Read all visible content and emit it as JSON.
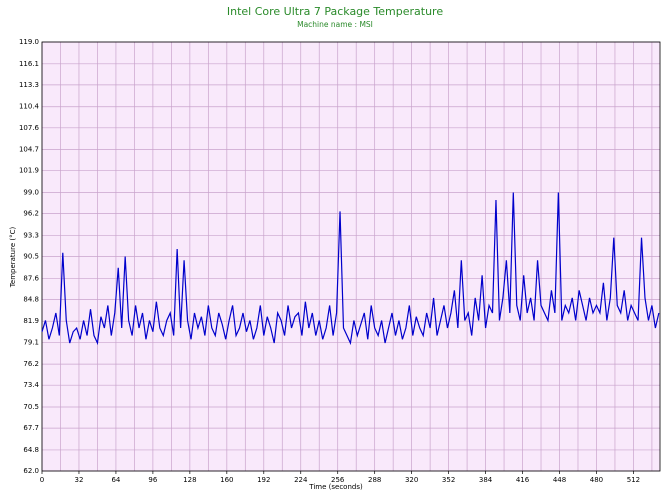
{
  "chart_data": {
    "type": "line",
    "title": "Intel Core Ultra 7 Package Temperature",
    "subtitle": "Machine name : MSI",
    "ylabel": "Temperature (°C)",
    "xlabel": "Time (seconds)",
    "xlim": [
      0,
      535
    ],
    "ylim": [
      62,
      119
    ],
    "xticks": [
      0,
      32,
      64,
      96,
      128,
      160,
      192,
      224,
      256,
      288,
      320,
      352,
      384,
      416,
      448,
      480,
      512
    ],
    "yticks": [
      {
        "value": 62,
        "label": "62.0"
      },
      {
        "value": 64.8,
        "label": "64.8"
      },
      {
        "value": 67.7,
        "label": "67.7"
      },
      {
        "value": 70.5,
        "label": "70.5"
      },
      {
        "value": 73.4,
        "label": "73.4"
      },
      {
        "value": 76.2,
        "label": "76.2"
      },
      {
        "value": 79.1,
        "label": "79.1"
      },
      {
        "value": 81.9,
        "label": "81.9"
      },
      {
        "value": 84.8,
        "label": "84.8"
      },
      {
        "value": 87.6,
        "label": "87.6"
      },
      {
        "value": 90.5,
        "label": "90.5"
      },
      {
        "value": 93.3,
        "label": "93.3"
      },
      {
        "value": 96.2,
        "label": "96.2"
      },
      {
        "value": 99,
        "label": "99.0"
      },
      {
        "value": 101.9,
        "label": "101.9"
      },
      {
        "value": 104.7,
        "label": "104.7"
      },
      {
        "value": 107.6,
        "label": "107.6"
      },
      {
        "value": 110.4,
        "label": "110.4"
      },
      {
        "value": 113.3,
        "label": "113.3"
      },
      {
        "value": 116.1,
        "label": "116.1"
      },
      {
        "value": 119,
        "label": "119.0"
      }
    ],
    "grid": true,
    "x": [
      0,
      3,
      6,
      9,
      12,
      15,
      18,
      21,
      24,
      27,
      30,
      33,
      36,
      39,
      42,
      45,
      48,
      51,
      54,
      57,
      60,
      63,
      66,
      69,
      72,
      75,
      78,
      81,
      84,
      87,
      90,
      93,
      96,
      99,
      102,
      105,
      108,
      111,
      114,
      117,
      120,
      123,
      126,
      129,
      132,
      135,
      138,
      141,
      144,
      147,
      150,
      153,
      156,
      159,
      162,
      165,
      168,
      171,
      174,
      177,
      180,
      183,
      186,
      189,
      192,
      195,
      198,
      201,
      204,
      207,
      210,
      213,
      216,
      219,
      222,
      225,
      228,
      231,
      234,
      237,
      240,
      243,
      246,
      249,
      252,
      255,
      258,
      261,
      264,
      267,
      270,
      273,
      276,
      279,
      282,
      285,
      288,
      291,
      294,
      297,
      300,
      303,
      306,
      309,
      312,
      315,
      318,
      321,
      324,
      327,
      330,
      333,
      336,
      339,
      342,
      345,
      348,
      351,
      354,
      357,
      360,
      363,
      366,
      369,
      372,
      375,
      378,
      381,
      384,
      387,
      390,
      393,
      396,
      399,
      402,
      405,
      408,
      411,
      414,
      417,
      420,
      423,
      426,
      429,
      432,
      435,
      438,
      441,
      444,
      447,
      450,
      453,
      456,
      459,
      462,
      465,
      468,
      471,
      474,
      477,
      480,
      483,
      486,
      489,
      492,
      495,
      498,
      501,
      504,
      507,
      510,
      513,
      516,
      519,
      522,
      525,
      528,
      531,
      534
    ],
    "series": [
      {
        "name": "Package",
        "color": "#0000cc",
        "values": [
          80.5,
          82,
          79.5,
          81,
          83,
          80,
          91,
          82,
          79,
          80.5,
          81,
          79.5,
          82,
          80,
          83.5,
          80,
          79,
          82.5,
          81,
          84,
          80,
          83,
          89,
          81,
          90.5,
          82,
          80,
          84,
          81,
          83,
          79.5,
          82,
          80.5,
          84.5,
          81,
          80,
          82,
          83,
          80,
          91.5,
          81,
          90,
          82,
          79.5,
          83,
          81,
          82.5,
          80,
          84,
          81,
          80,
          83,
          81.5,
          79.5,
          82,
          84,
          80,
          81,
          83,
          80.5,
          82,
          79.5,
          81,
          84,
          80,
          82.5,
          81,
          79,
          83,
          82,
          80,
          84,
          81,
          82.5,
          83,
          80,
          84.5,
          81,
          83,
          80,
          82,
          79.5,
          81,
          84,
          80,
          83,
          96.5,
          81,
          80,
          79,
          82,
          80,
          81.5,
          83,
          79.5,
          84,
          81,
          80,
          82,
          79,
          81,
          83,
          80,
          82,
          79.5,
          81,
          84,
          80,
          82.5,
          81,
          80,
          83,
          81,
          85,
          80,
          82,
          84,
          81,
          83,
          86,
          81,
          90,
          82,
          83,
          80,
          85,
          82,
          88,
          81,
          84,
          83,
          98,
          82,
          85,
          90,
          83,
          99,
          84,
          82,
          88,
          83,
          85,
          82,
          90,
          84,
          83,
          82,
          86,
          83,
          99,
          82,
          84,
          83,
          85,
          82,
          86,
          84,
          82,
          85,
          83,
          84,
          83,
          87,
          82,
          85,
          93,
          84,
          83,
          86,
          82,
          84,
          83,
          82,
          93,
          85,
          82,
          84,
          81,
          83
        ]
      }
    ]
  }
}
